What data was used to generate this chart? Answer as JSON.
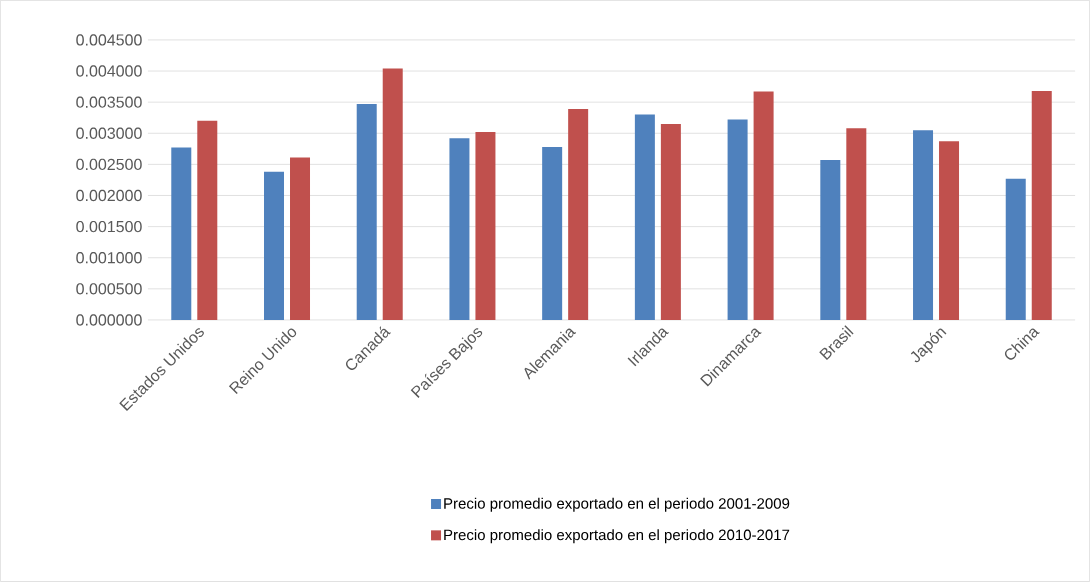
{
  "chart_data": {
    "type": "bar",
    "categories": [
      "Estados Unidos",
      "Reino Unido",
      "Canadá",
      "Países Bajos",
      "Alemania",
      "Irlanda",
      "Dinamarca",
      "Brasil",
      "Japón",
      "China"
    ],
    "series": [
      {
        "name": "Precio promedio exportado en el periodo 2001-2009",
        "color": "#4f81bd",
        "values": [
          0.00277,
          0.00238,
          0.00347,
          0.00292,
          0.00278,
          0.0033,
          0.00322,
          0.00257,
          0.00305,
          0.00227
        ]
      },
      {
        "name": "Precio promedio exportado en el periodo 2010-2017",
        "color": "#c0504d",
        "values": [
          0.0032,
          0.00261,
          0.00404,
          0.00302,
          0.00339,
          0.00315,
          0.00367,
          0.00308,
          0.00287,
          0.00368
        ]
      }
    ],
    "ylim": [
      0,
      0.0045
    ],
    "yticks": [
      {
        "value": 0,
        "label": "0.000000"
      },
      {
        "value": 0.0005,
        "label": "0.000500"
      },
      {
        "value": 0.001,
        "label": "0.001000"
      },
      {
        "value": 0.0015,
        "label": "0.001500"
      },
      {
        "value": 0.002,
        "label": "0.002000"
      },
      {
        "value": 0.0025,
        "label": "0.002500"
      },
      {
        "value": 0.003,
        "label": "0.003000"
      },
      {
        "value": 0.0035,
        "label": "0.003500"
      },
      {
        "value": 0.004,
        "label": "0.004000"
      },
      {
        "value": 0.0045,
        "label": "0.004500"
      }
    ],
    "grid": "y",
    "legend": "bottom"
  }
}
